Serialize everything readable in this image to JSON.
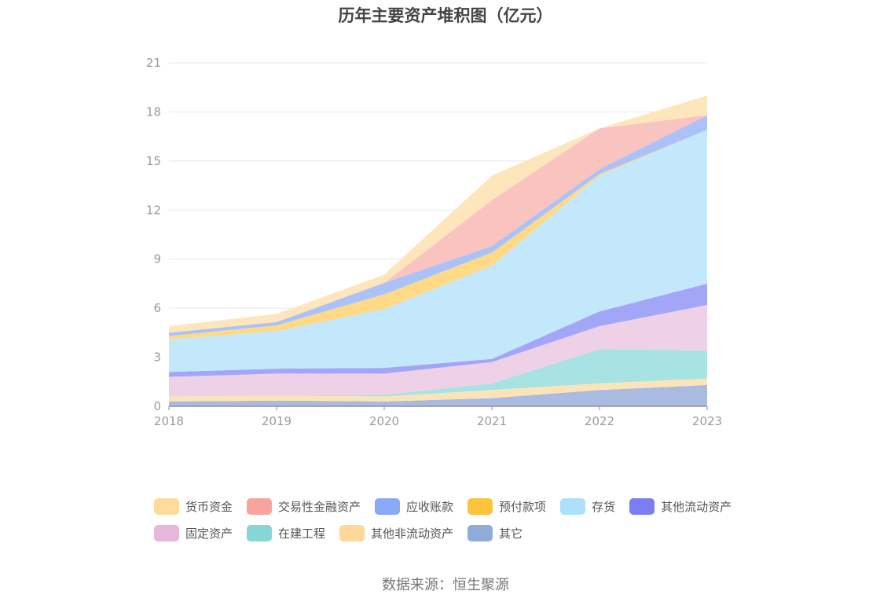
{
  "chart_data": {
    "type": "area",
    "stacked": true,
    "title": "历年主要资产堆积图（亿元）",
    "x": [
      "2018",
      "2019",
      "2020",
      "2021",
      "2022",
      "2023"
    ],
    "ylim": [
      0,
      21
    ],
    "yticks": [
      "0",
      "3",
      "6",
      "9",
      "12",
      "15",
      "18",
      "21"
    ],
    "grid": true,
    "legend_position": "bottom",
    "series": [
      {
        "name": "其它",
        "color": "#a9bbe0",
        "values": [
          0.3,
          0.35,
          0.3,
          0.5,
          1.0,
          1.3
        ]
      },
      {
        "name": "其他非流动资产",
        "color": "#fde4b8",
        "values": [
          0.3,
          0.3,
          0.3,
          0.5,
          0.4,
          0.4
        ]
      },
      {
        "name": "在建工程",
        "color": "#a7e3e2",
        "values": [
          0.0,
          0.0,
          0.1,
          0.4,
          2.1,
          1.7
        ]
      },
      {
        "name": "固定资产",
        "color": "#eed1e6",
        "values": [
          1.2,
          1.35,
          1.3,
          1.3,
          1.4,
          2.8
        ]
      },
      {
        "name": "其他流动资产",
        "color": "#a3a6f6",
        "values": [
          0.3,
          0.3,
          0.35,
          0.2,
          0.9,
          1.3
        ]
      },
      {
        "name": "存货",
        "color": "#c3e8fb",
        "values": [
          2.0,
          2.3,
          3.6,
          5.7,
          8.3,
          9.4
        ]
      },
      {
        "name": "预付款项",
        "color": "#fed986",
        "values": [
          0.2,
          0.35,
          0.9,
          0.8,
          0.1,
          0.0
        ]
      },
      {
        "name": "应收账款",
        "color": "#abc2f9",
        "values": [
          0.2,
          0.2,
          0.7,
          0.4,
          0.3,
          0.9
        ]
      },
      {
        "name": "交易性金融资产",
        "color": "#f9c3c0",
        "values": [
          0.0,
          0.0,
          0.0,
          2.8,
          2.5,
          0.0
        ]
      },
      {
        "name": "货币资金",
        "color": "#fde6bb",
        "values": [
          0.4,
          0.5,
          0.5,
          1.5,
          0.0,
          1.2
        ]
      }
    ]
  },
  "legend": {
    "items": [
      {
        "label": "货币资金",
        "color": "#fddb98"
      },
      {
        "label": "交易性金融资产",
        "color": "#f8a49e"
      },
      {
        "label": "应收账款",
        "color": "#8aa8f8"
      },
      {
        "label": "预付款项",
        "color": "#fcc43d"
      },
      {
        "label": "存货",
        "color": "#abe1fa"
      },
      {
        "label": "其他流动资产",
        "color": "#7b7ef3"
      },
      {
        "label": "固定资产",
        "color": "#e7b8da"
      },
      {
        "label": "在建工程",
        "color": "#86d6d6"
      },
      {
        "label": "其他非流动资产",
        "color": "#fed79a"
      },
      {
        "label": "其它",
        "color": "#8facd9"
      }
    ]
  },
  "source": "数据来源：恒生聚源"
}
